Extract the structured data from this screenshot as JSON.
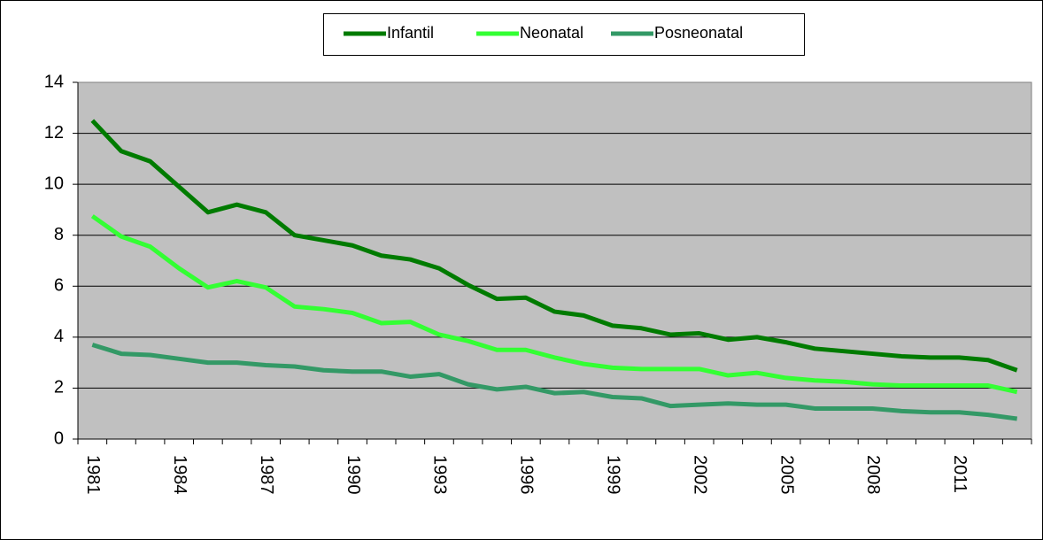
{
  "chart_data": {
    "type": "line",
    "categories": [
      "1981",
      null,
      null,
      "1984",
      null,
      null,
      "1987",
      null,
      null,
      "1990",
      null,
      null,
      "1993",
      null,
      null,
      "1996",
      null,
      null,
      "1999",
      null,
      null,
      "2002",
      null,
      null,
      "2005",
      null,
      null,
      "2008",
      null,
      null,
      "2011",
      null,
      null
    ],
    "series": [
      {
        "name": "Infantil",
        "color": "#007b00",
        "values": [
          12.5,
          11.3,
          10.9,
          9.9,
          8.9,
          9.2,
          8.9,
          8.0,
          7.8,
          7.6,
          7.2,
          7.05,
          6.7,
          6.05,
          5.5,
          5.55,
          5.0,
          4.85,
          4.45,
          4.35,
          4.1,
          4.15,
          3.9,
          4.0,
          3.8,
          3.55,
          3.45,
          3.35,
          3.25,
          3.2,
          3.2,
          3.1,
          2.7
        ]
      },
      {
        "name": "Neonatal",
        "color": "#33ff33",
        "values": [
          8.75,
          7.95,
          7.55,
          6.7,
          5.95,
          6.2,
          5.95,
          5.2,
          5.1,
          4.95,
          4.55,
          4.6,
          4.1,
          3.85,
          3.5,
          3.5,
          3.2,
          2.95,
          2.8,
          2.75,
          2.75,
          2.75,
          2.5,
          2.6,
          2.4,
          2.3,
          2.25,
          2.15,
          2.1,
          2.1,
          2.1,
          2.1,
          1.85
        ]
      },
      {
        "name": "Posneonatal",
        "color": "#339966",
        "values": [
          3.7,
          3.35,
          3.3,
          3.15,
          3.0,
          3.0,
          2.9,
          2.85,
          2.7,
          2.65,
          2.65,
          2.45,
          2.55,
          2.15,
          1.95,
          2.05,
          1.8,
          1.85,
          1.65,
          1.6,
          1.3,
          1.35,
          1.4,
          1.35,
          1.35,
          1.2,
          1.2,
          1.2,
          1.1,
          1.05,
          1.05,
          0.95,
          0.8
        ]
      }
    ],
    "ylim": [
      0,
      14
    ],
    "yticks": [
      0,
      2,
      4,
      6,
      8,
      10,
      12,
      14
    ],
    "grid": true,
    "legend": "top"
  }
}
